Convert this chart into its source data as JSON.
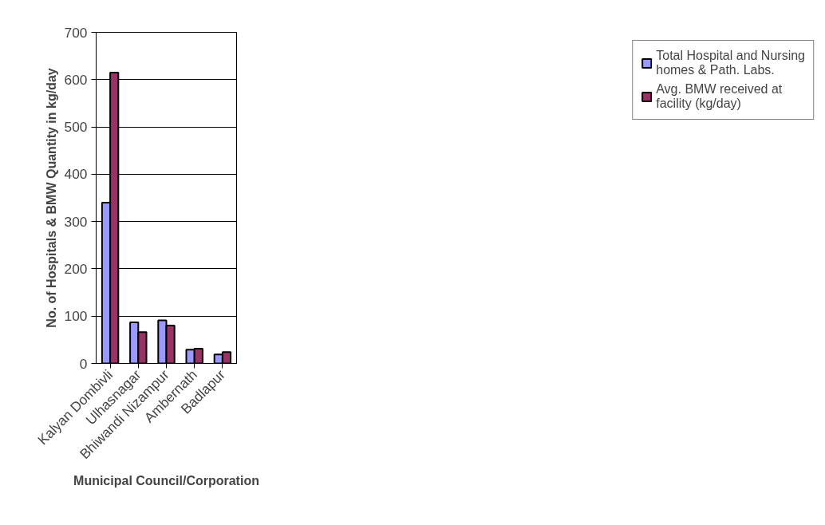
{
  "chart_data": {
    "type": "bar",
    "xlabel": "Municipal Council/Corporation",
    "ylabel": "No. of Hospitals & BMW Quantity in kg/day",
    "categories": [
      "Kalyan Dombivli",
      "Ulhasnagar",
      "Bhiwandi Nizampur",
      "Ambernath",
      "Badlapur"
    ],
    "series": [
      {
        "name": "Total Hospital and Nursing homes & Path. Labs.",
        "color": "#9999ff",
        "values": [
          340,
          87,
          91,
          29,
          19
        ]
      },
      {
        "name": "Avg. BMW received at facility (kg/day)",
        "color": "#993366",
        "values": [
          615,
          66,
          80,
          31,
          24
        ]
      }
    ],
    "ylim": [
      0,
      700
    ],
    "yticks": [
      0,
      100,
      200,
      300,
      400,
      500,
      600,
      700
    ],
    "grid": "y",
    "legend": "right"
  }
}
